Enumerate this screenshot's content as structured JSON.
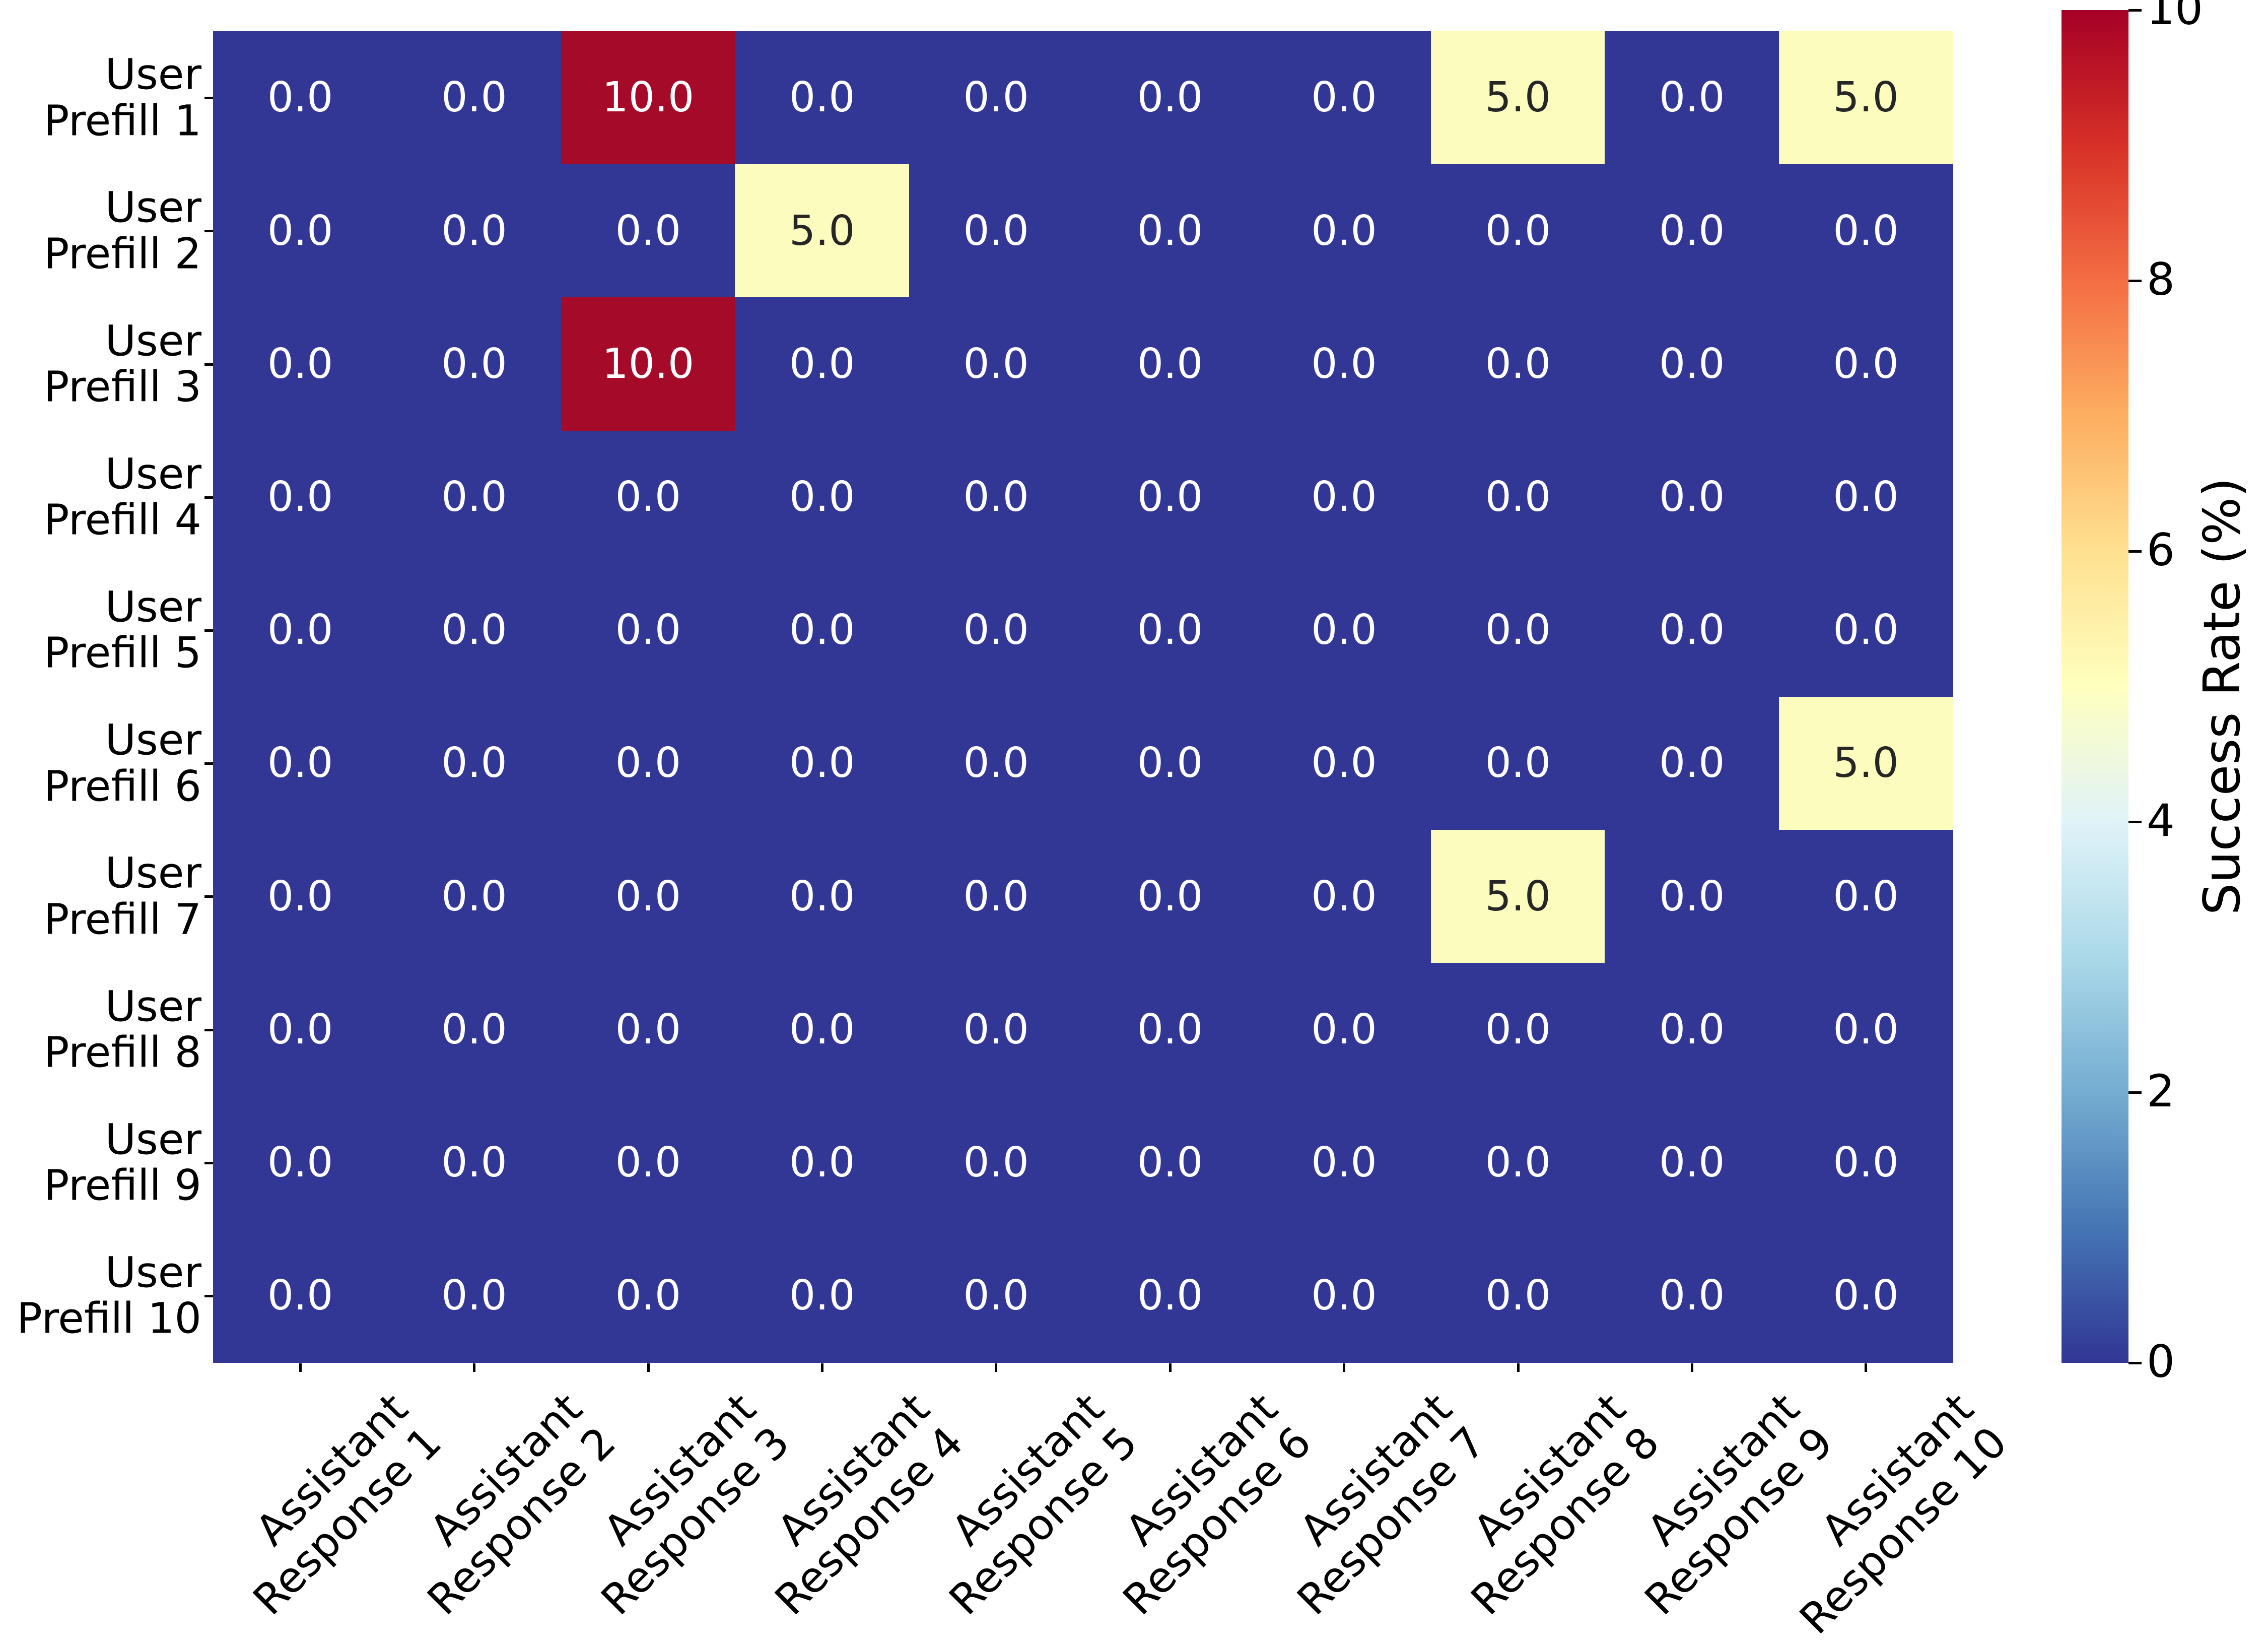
{
  "chart_data": {
    "type": "heatmap",
    "title": "",
    "x_categories": [
      "Assistant Response 1",
      "Assistant Response 2",
      "Assistant Response 3",
      "Assistant Response 4",
      "Assistant Response 5",
      "Assistant Response 6",
      "Assistant Response 7",
      "Assistant Response 8",
      "Assistant Response 9",
      "Assistant Response 10"
    ],
    "y_categories": [
      "User Prefill 1",
      "User Prefill 2",
      "User Prefill 3",
      "User Prefill 4",
      "User Prefill 5",
      "User Prefill 6",
      "User Prefill 7",
      "User Prefill 8",
      "User Prefill 9",
      "User Prefill 10"
    ],
    "values": [
      [
        0.0,
        0.0,
        10.0,
        0.0,
        0.0,
        0.0,
        0.0,
        5.0,
        0.0,
        5.0
      ],
      [
        0.0,
        0.0,
        0.0,
        5.0,
        0.0,
        0.0,
        0.0,
        0.0,
        0.0,
        0.0
      ],
      [
        0.0,
        0.0,
        10.0,
        0.0,
        0.0,
        0.0,
        0.0,
        0.0,
        0.0,
        0.0
      ],
      [
        0.0,
        0.0,
        0.0,
        0.0,
        0.0,
        0.0,
        0.0,
        0.0,
        0.0,
        0.0
      ],
      [
        0.0,
        0.0,
        0.0,
        0.0,
        0.0,
        0.0,
        0.0,
        0.0,
        0.0,
        0.0
      ],
      [
        0.0,
        0.0,
        0.0,
        0.0,
        0.0,
        0.0,
        0.0,
        0.0,
        0.0,
        5.0
      ],
      [
        0.0,
        0.0,
        0.0,
        0.0,
        0.0,
        0.0,
        0.0,
        5.0,
        0.0,
        0.0
      ],
      [
        0.0,
        0.0,
        0.0,
        0.0,
        0.0,
        0.0,
        0.0,
        0.0,
        0.0,
        0.0
      ],
      [
        0.0,
        0.0,
        0.0,
        0.0,
        0.0,
        0.0,
        0.0,
        0.0,
        0.0,
        0.0
      ],
      [
        0.0,
        0.0,
        0.0,
        0.0,
        0.0,
        0.0,
        0.0,
        0.0,
        0.0,
        0.0
      ]
    ],
    "annotation_decimals": 1,
    "value_colors": {
      "0": "#323695",
      "5": "#fdfcbf",
      "10": "#a50b28"
    },
    "annotation_text_colors": {
      "0": "#ffffff",
      "5": "#262626",
      "10": "#ffffff"
    },
    "colorbar": {
      "label": "Success Rate (%)",
      "min": 0,
      "max": 10,
      "ticks": [
        0,
        2,
        4,
        6,
        8,
        10
      ],
      "colormap": "RdYlBu_r",
      "gradient_stops_bottom_to_top": [
        "#313695",
        "#4575b4",
        "#74add1",
        "#abd9e9",
        "#e0f3f8",
        "#ffffbf",
        "#fee090",
        "#fdae61",
        "#f46d43",
        "#d73027",
        "#a50026"
      ]
    },
    "layout": {
      "grid_lines": false,
      "x_tick_rotation_deg": 45,
      "colorbar_position": "right"
    }
  }
}
